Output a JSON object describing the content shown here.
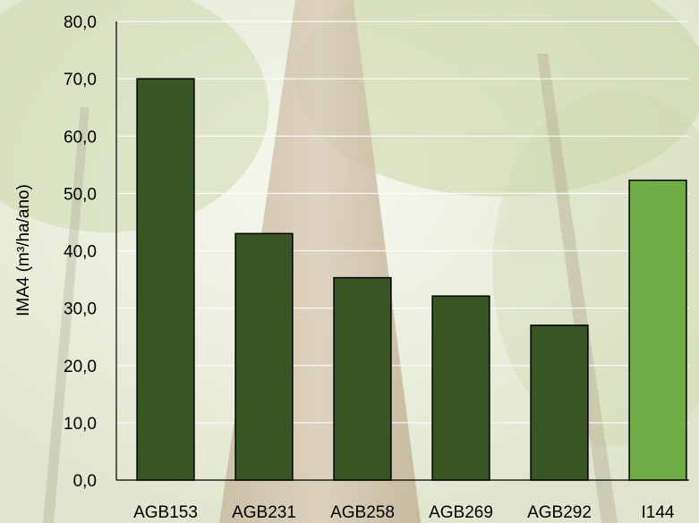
{
  "chart_data": {
    "type": "bar",
    "title": "",
    "xlabel": "",
    "ylabel": "IMA4 (m³/ha/ano)",
    "categories": [
      "AGB153",
      "AGB231",
      "AGB258",
      "AGB269",
      "AGB292",
      "I144"
    ],
    "values": [
      70.0,
      43.0,
      35.3,
      32.1,
      27.0,
      52.3
    ],
    "ylim": [
      0,
      80
    ],
    "yticks": [
      "0,0",
      "10,0",
      "20,0",
      "30,0",
      "40,0",
      "50,0",
      "60,0",
      "70,0",
      "80,0"
    ],
    "grid": true,
    "legend": "none",
    "colors": {
      "default_bar": "#375623",
      "highlight_bar": "#70ad47",
      "bar_outline": "#000000",
      "gridline": "#ffffff"
    },
    "highlight_categories": [
      "I144"
    ]
  }
}
